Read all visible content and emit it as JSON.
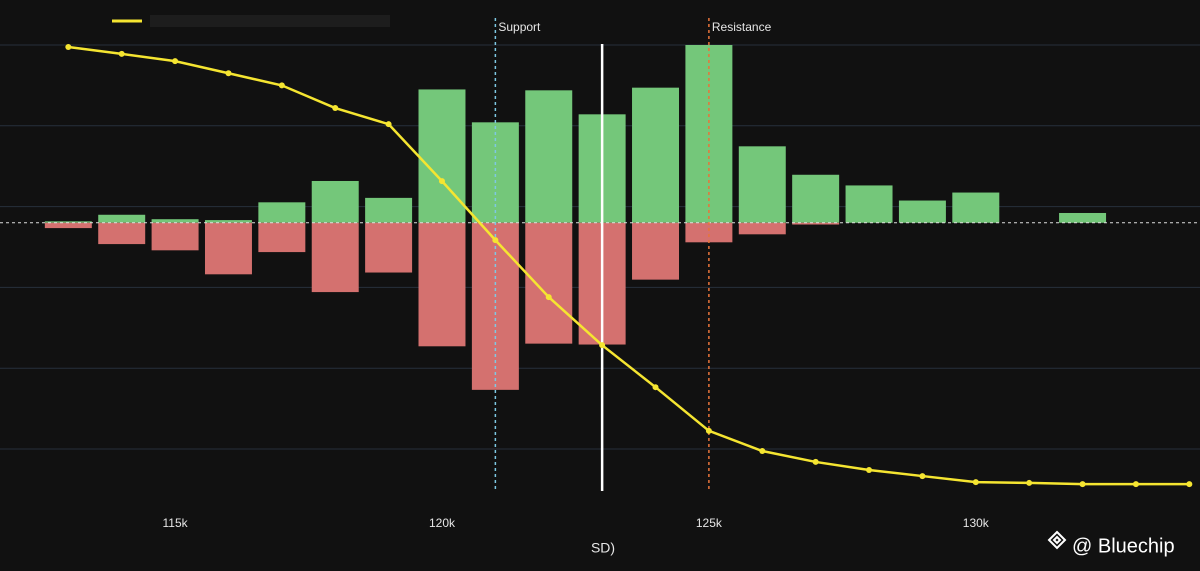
{
  "chart_data": {
    "type": "bar",
    "x": [
      113000,
      114000,
      115000,
      116000,
      117000,
      118000,
      119000,
      120000,
      121000,
      122000,
      123000,
      124000,
      125000,
      126000,
      127000,
      128000,
      129000,
      130000,
      131000,
      132000
    ],
    "series": [
      {
        "color": "#74c77a",
        "values": [
          0.8,
          4.5,
          2,
          1.5,
          11.5,
          23.5,
          14,
          75,
          56.5,
          74.5,
          61,
          76,
          100,
          43,
          27,
          21,
          12.5,
          17,
          0,
          5.5
        ]
      },
      {
        "color": "#d4716f",
        "values": [
          -3,
          -12,
          -15.5,
          -29,
          -16.5,
          -39,
          -28,
          -69.5,
          -94,
          -68,
          -68.5,
          -32,
          -11,
          -6.5,
          -1,
          0,
          0,
          0,
          0,
          0
        ]
      },
      {
        "type": "line",
        "axis": "y2",
        "color": "#f5e531",
        "x": [
          113000,
          114000,
          115000,
          116000,
          117000,
          118000,
          119000,
          120000,
          121000,
          122000,
          123000,
          124000,
          125000,
          126000,
          127000,
          128000,
          129000,
          130000,
          131000,
          132000,
          133000,
          134000
        ],
        "values": [
          99.5,
          97.8,
          96,
          93,
          90,
          84.4,
          80.4,
          66.3,
          51.7,
          37.6,
          25.7,
          15.3,
          4.5,
          -0.5,
          -3.2,
          -5.2,
          -6.7,
          -8.2,
          -8.4,
          -8.7,
          -8.7,
          -8.7
        ]
      }
    ],
    "xlim": [
      111720,
      134200
    ],
    "xticks": [
      {
        "value": 115000,
        "label": "115k"
      },
      {
        "value": 120000,
        "label": "120k"
      },
      {
        "value": 125000,
        "label": "125k"
      },
      {
        "value": 130000,
        "label": "130k"
      }
    ],
    "ylim": [
      -150,
      100
    ],
    "y2lim": [
      -10,
      100
    ],
    "y2ticks": [
      0,
      20,
      40,
      60,
      80,
      100
    ],
    "grid": true,
    "x_label": "SD)",
    "annotations": [
      {
        "label": "Support",
        "x": 121000,
        "color": "#7ec8e3"
      },
      {
        "label": "Resistance",
        "x": 125000,
        "color": "#e8743b"
      }
    ],
    "current_line": {
      "x": 123000,
      "color": "#ffffff"
    },
    "watermark": "@ Bluechip"
  }
}
